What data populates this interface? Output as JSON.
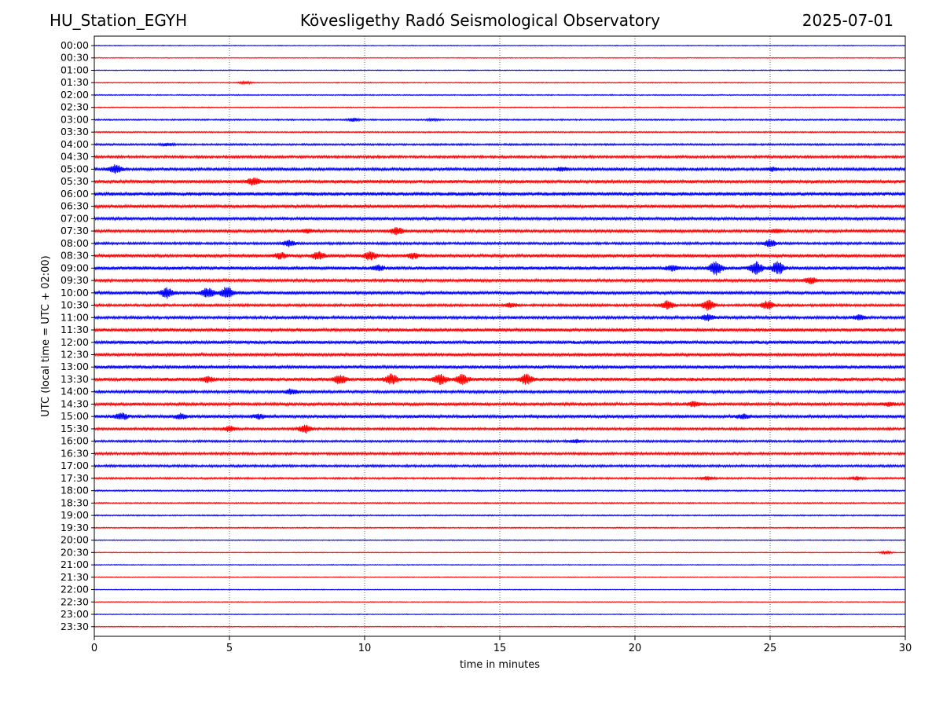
{
  "header": {
    "station": "HU_Station_EGYH",
    "observatory": "Kövesligethy Radó Seismological Observatory",
    "date": "2025-07-01"
  },
  "chart_data": {
    "type": "line",
    "title": "Kövesligethy Radó Seismological Observatory",
    "xlabel": "time in minutes",
    "ylabel": "UTC (local time = UTC + 02:00)",
    "xlim": [
      0,
      30
    ],
    "xticks": [
      0,
      5,
      10,
      15,
      20,
      25,
      30
    ],
    "grid": "vertical dotted at x ticks",
    "colors": [
      "#0000ff",
      "#ff0000"
    ],
    "row_labels": [
      "00:00",
      "00:30",
      "01:00",
      "01:30",
      "02:00",
      "02:30",
      "03:00",
      "03:30",
      "04:00",
      "04:30",
      "05:00",
      "05:30",
      "06:00",
      "06:30",
      "07:00",
      "07:30",
      "08:00",
      "08:30",
      "09:00",
      "09:30",
      "10:00",
      "10:30",
      "11:00",
      "11:30",
      "12:00",
      "12:30",
      "13:00",
      "13:30",
      "14:00",
      "14:30",
      "15:00",
      "15:30",
      "16:00",
      "16:30",
      "17:00",
      "17:30",
      "18:00",
      "18:30",
      "19:00",
      "19:30",
      "20:00",
      "20:30",
      "21:00",
      "21:30",
      "22:00",
      "22:30",
      "23:00",
      "23:30"
    ],
    "noise_level": [
      1,
      1,
      1,
      1.2,
      1.3,
      1.2,
      1.8,
      1.6,
      2.2,
      3,
      3.4,
      4,
      4.6,
      4,
      3.6,
      3.4,
      3,
      3.8,
      4.2,
      3.6,
      3.8,
      3,
      3.4,
      4,
      4.2,
      3.8,
      4,
      4.2,
      3.4,
      3.6,
      3.8,
      2.8,
      2.6,
      3,
      2.8,
      2.2,
      1.8,
      1.6,
      1.5,
      1.4,
      1.1,
      1,
      1,
      1,
      1,
      1,
      1,
      1
    ],
    "events": [
      {
        "row": 3,
        "t": 5.6,
        "amp": 3
      },
      {
        "row": 6,
        "t": 9.6,
        "amp": 4
      },
      {
        "row": 6,
        "t": 12.5,
        "amp": 2
      },
      {
        "row": 8,
        "t": 2.7,
        "amp": 4
      },
      {
        "row": 10,
        "t": 0.8,
        "amp": 10
      },
      {
        "row": 10,
        "t": 17.3,
        "amp": 4
      },
      {
        "row": 10,
        "t": 25.1,
        "amp": 4
      },
      {
        "row": 11,
        "t": 5.9,
        "amp": 8
      },
      {
        "row": 15,
        "t": 11.2,
        "amp": 9
      },
      {
        "row": 15,
        "t": 7.9,
        "amp": 4
      },
      {
        "row": 15,
        "t": 25.2,
        "amp": 4
      },
      {
        "row": 16,
        "t": 7.2,
        "amp": 7
      },
      {
        "row": 16,
        "t": 25.0,
        "amp": 9
      },
      {
        "row": 17,
        "t": 8.3,
        "amp": 9
      },
      {
        "row": 17,
        "t": 6.9,
        "amp": 7
      },
      {
        "row": 17,
        "t": 10.2,
        "amp": 10
      },
      {
        "row": 17,
        "t": 11.8,
        "amp": 6
      },
      {
        "row": 18,
        "t": 23.0,
        "amp": 16
      },
      {
        "row": 18,
        "t": 24.5,
        "amp": 14
      },
      {
        "row": 18,
        "t": 25.3,
        "amp": 15
      },
      {
        "row": 18,
        "t": 21.4,
        "amp": 6
      },
      {
        "row": 18,
        "t": 10.5,
        "amp": 6
      },
      {
        "row": 19,
        "t": 26.5,
        "amp": 7
      },
      {
        "row": 20,
        "t": 2.7,
        "amp": 12
      },
      {
        "row": 20,
        "t": 4.2,
        "amp": 12
      },
      {
        "row": 20,
        "t": 4.9,
        "amp": 14
      },
      {
        "row": 21,
        "t": 21.2,
        "amp": 10
      },
      {
        "row": 21,
        "t": 22.7,
        "amp": 13
      },
      {
        "row": 21,
        "t": 24.9,
        "amp": 11
      },
      {
        "row": 21,
        "t": 15.4,
        "amp": 5
      },
      {
        "row": 22,
        "t": 22.7,
        "amp": 8
      },
      {
        "row": 22,
        "t": 28.3,
        "amp": 6
      },
      {
        "row": 27,
        "t": 9.1,
        "amp": 10
      },
      {
        "row": 27,
        "t": 11.0,
        "amp": 12
      },
      {
        "row": 27,
        "t": 12.8,
        "amp": 12
      },
      {
        "row": 27,
        "t": 13.6,
        "amp": 13
      },
      {
        "row": 27,
        "t": 16.0,
        "amp": 12
      },
      {
        "row": 27,
        "t": 4.2,
        "amp": 6
      },
      {
        "row": 28,
        "t": 7.3,
        "amp": 6
      },
      {
        "row": 29,
        "t": 22.2,
        "amp": 6
      },
      {
        "row": 29,
        "t": 29.4,
        "amp": 5
      },
      {
        "row": 30,
        "t": 1.0,
        "amp": 8
      },
      {
        "row": 30,
        "t": 3.2,
        "amp": 6
      },
      {
        "row": 30,
        "t": 6.1,
        "amp": 5
      },
      {
        "row": 30,
        "t": 24.0,
        "amp": 5
      },
      {
        "row": 31,
        "t": 5.0,
        "amp": 6
      },
      {
        "row": 31,
        "t": 7.8,
        "amp": 10
      },
      {
        "row": 32,
        "t": 17.8,
        "amp": 4
      },
      {
        "row": 35,
        "t": 22.7,
        "amp": 4
      },
      {
        "row": 35,
        "t": 28.2,
        "amp": 4
      },
      {
        "row": 41,
        "t": 29.3,
        "amp": 3
      }
    ]
  }
}
